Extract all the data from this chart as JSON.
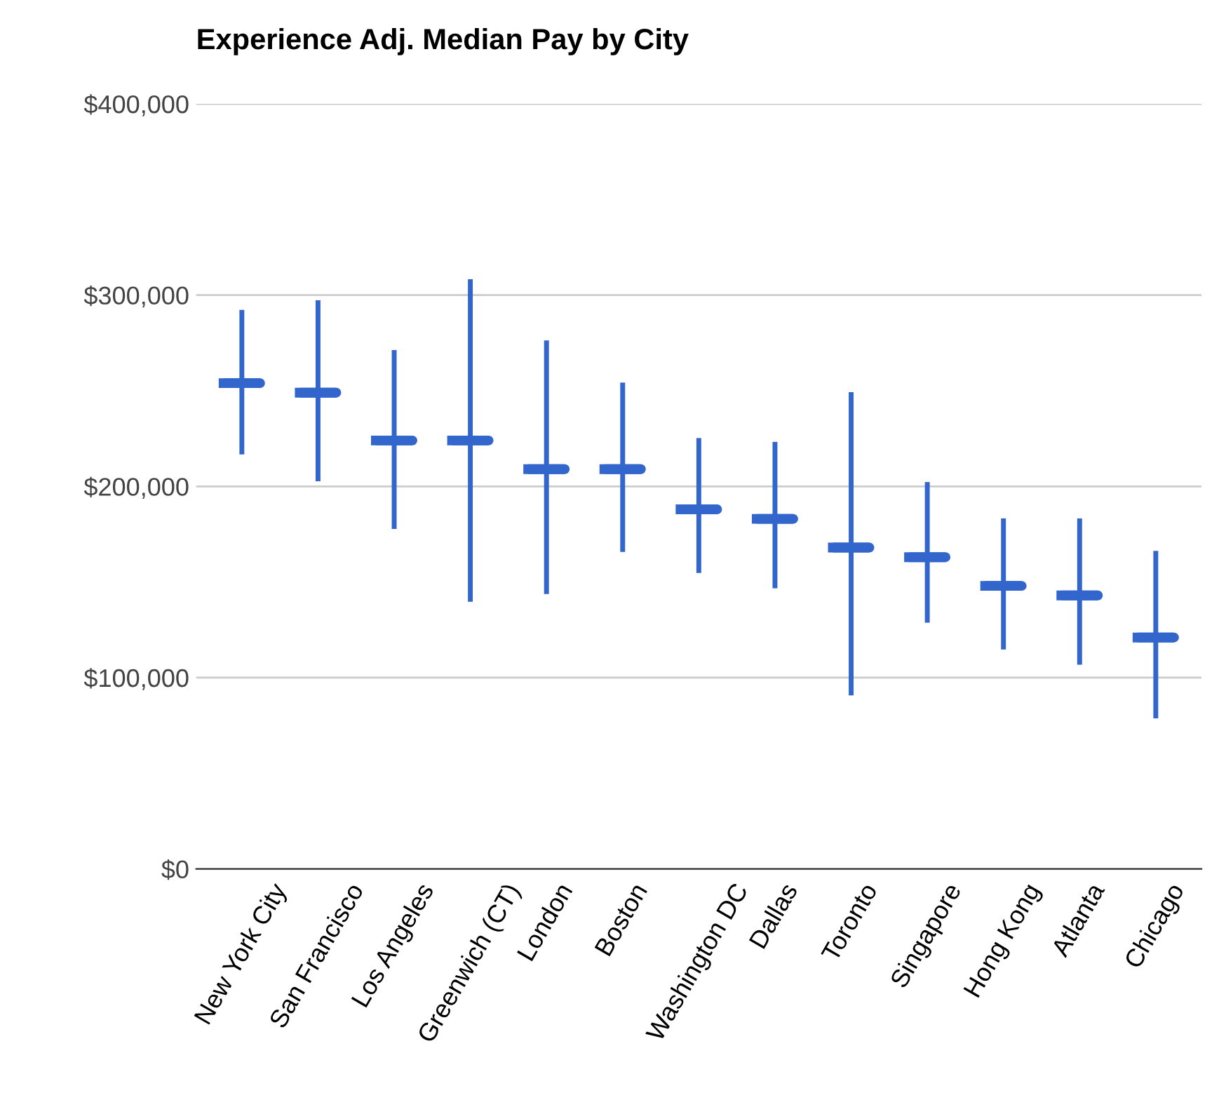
{
  "chart_data": {
    "type": "box",
    "title": "Experience Adj. Median Pay by City",
    "categories": [
      "New York City",
      "San Francisco",
      "Los Angeles",
      "Greenwich (CT)",
      "London",
      "Boston",
      "Washington DC",
      "Dallas",
      "Toronto",
      "Singapore",
      "Hong Kong",
      "Atlanta",
      "Chicago"
    ],
    "series": [
      {
        "color": "#3366cc",
        "boxes": [
          {
            "low": 218000,
            "q1": 254000,
            "median": 254000,
            "q3": 254000,
            "high": 291000
          },
          {
            "low": 204000,
            "q1": 249000,
            "median": 249000,
            "q3": 249000,
            "high": 296000
          },
          {
            "low": 179000,
            "q1": 224000,
            "median": 224000,
            "q3": 224000,
            "high": 270000
          },
          {
            "low": 141000,
            "q1": 224000,
            "median": 224000,
            "q3": 224000,
            "high": 307000
          },
          {
            "low": 145000,
            "q1": 209000,
            "median": 209000,
            "q3": 209000,
            "high": 275000
          },
          {
            "low": 167000,
            "q1": 209000,
            "median": 209000,
            "q3": 209000,
            "high": 253000
          },
          {
            "low": 156000,
            "q1": 188000,
            "median": 188000,
            "q3": 188000,
            "high": 224000
          },
          {
            "low": 148000,
            "q1": 183000,
            "median": 183000,
            "q3": 183000,
            "high": 222000
          },
          {
            "low": 92000,
            "q1": 168000,
            "median": 168000,
            "q3": 168000,
            "high": 248000
          },
          {
            "low": 130000,
            "q1": 163000,
            "median": 163000,
            "q3": 163000,
            "high": 201000
          },
          {
            "low": 116000,
            "q1": 148000,
            "median": 148000,
            "q3": 148000,
            "high": 182000
          },
          {
            "low": 108000,
            "q1": 143000,
            "median": 143000,
            "q3": 143000,
            "high": 182000
          },
          {
            "low": 80000,
            "q1": 121000,
            "median": 121000,
            "q3": 121000,
            "high": 165000
          }
        ]
      }
    ],
    "ylim": [
      0,
      400000
    ],
    "yticks": [
      {
        "value": 0,
        "label": "$0"
      },
      {
        "value": 100000,
        "label": "$100,000"
      },
      {
        "value": 200000,
        "label": "$200,000"
      },
      {
        "value": 300000,
        "label": "$300,000"
      },
      {
        "value": 400000,
        "label": "$400,000"
      }
    ],
    "grid": "y",
    "legend": false
  }
}
